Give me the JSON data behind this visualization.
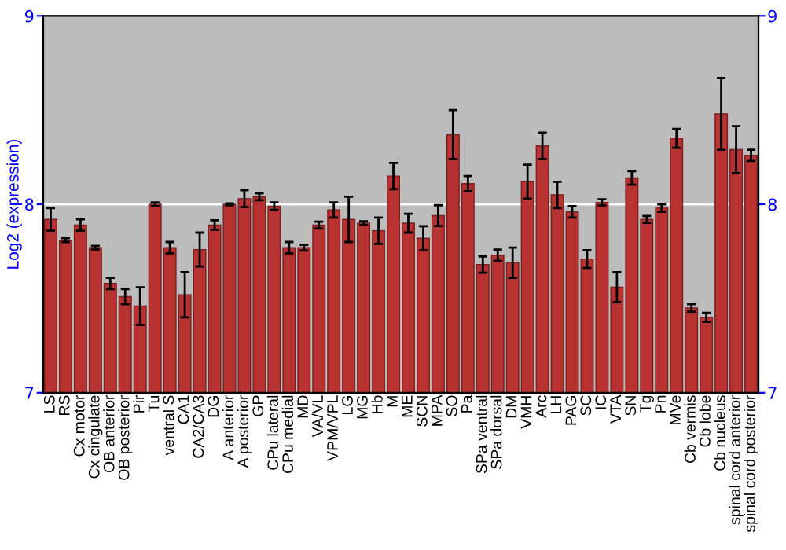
{
  "chart_data": {
    "type": "bar",
    "ylabel": "Log2 (expression)",
    "categories": [
      "LS",
      "RS",
      "Cx motor",
      "Cx cingulate",
      "OB anterior",
      "OB posterior",
      "Pir",
      "Tu",
      "ventral S",
      "CA1",
      "CA2/CA3",
      "DG",
      "A anterior",
      "A posterior",
      "GP",
      "CPu lateral",
      "CPu medial",
      "MD",
      "VA/VL",
      "VPM/VPL",
      "LG",
      "MG",
      "Hb",
      "M",
      "ME",
      "SCN",
      "MPA",
      "SO",
      "Pa",
      "SPa ventral",
      "SPa dorsal",
      "DM",
      "VMH",
      "Arc",
      "LH",
      "PAG",
      "SC",
      "IC",
      "VTA",
      "SN",
      "Tg",
      "Pn",
      "MVe",
      "Cb vermis",
      "Cb lobe",
      "Cb nucleus",
      "spinal cord anterior",
      "spinal cord posterior"
    ],
    "values": [
      7.92,
      7.81,
      7.89,
      7.77,
      7.58,
      7.51,
      7.46,
      8.0,
      7.77,
      7.52,
      7.76,
      7.89,
      8.0,
      8.03,
      8.04,
      7.99,
      7.77,
      7.77,
      7.89,
      7.97,
      7.92,
      7.9,
      7.86,
      8.15,
      7.9,
      7.82,
      7.94,
      8.37,
      8.11,
      7.68,
      7.73,
      7.69,
      8.12,
      8.31,
      8.05,
      7.96,
      7.71,
      8.01,
      7.56,
      8.14,
      7.92,
      7.98,
      8.35,
      7.45,
      7.4,
      8.48,
      8.29,
      8.26
    ],
    "errors": [
      0.06,
      0.01,
      0.03,
      0.01,
      0.03,
      0.04,
      0.1,
      0.01,
      0.03,
      0.12,
      0.09,
      0.025,
      0.005,
      0.045,
      0.018,
      0.02,
      0.03,
      0.015,
      0.018,
      0.04,
      0.12,
      0.01,
      0.07,
      0.07,
      0.05,
      0.064,
      0.055,
      0.13,
      0.04,
      0.043,
      0.03,
      0.08,
      0.09,
      0.07,
      0.07,
      0.03,
      0.047,
      0.017,
      0.08,
      0.036,
      0.018,
      0.02,
      0.05,
      0.02,
      0.024,
      0.19,
      0.125,
      0.03
    ],
    "color": "#b83232",
    "ylim": [
      7,
      9
    ],
    "yticks": [
      7,
      8,
      9
    ],
    "y2lim": [
      7,
      9
    ],
    "y2ticks": [
      7,
      8,
      9
    ],
    "grid": "y"
  }
}
